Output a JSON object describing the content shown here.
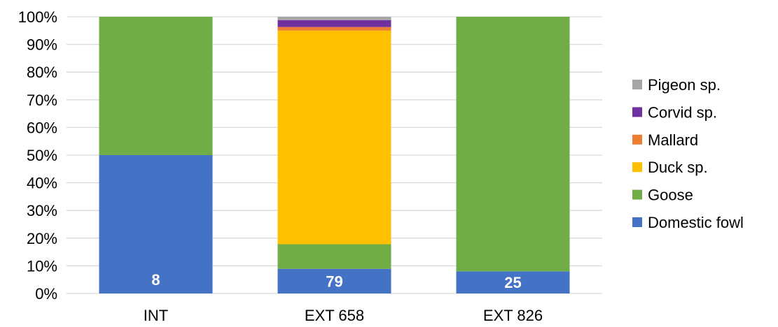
{
  "chart_data": {
    "type": "bar",
    "stacked": "percent",
    "categories": [
      "INT",
      "EXT 658",
      "EXT 826"
    ],
    "series": [
      {
        "name": "Domestic fowl",
        "color": "#4472C4",
        "values": [
          50,
          8.9,
          8
        ]
      },
      {
        "name": "Goose",
        "color": "#70AD47",
        "values": [
          50,
          8.9,
          92
        ]
      },
      {
        "name": "Duck sp.",
        "color": "#FFC000",
        "values": [
          0,
          77.2,
          0
        ]
      },
      {
        "name": "Mallard",
        "color": "#ED7D31",
        "values": [
          0,
          1.3,
          0
        ]
      },
      {
        "name": "Corvid sp.",
        "color": "#7030A0",
        "values": [
          0,
          2.5,
          0
        ]
      },
      {
        "name": "Pigeon sp.",
        "color": "#A5A5A5",
        "values": [
          0,
          1.2,
          0
        ]
      }
    ],
    "data_labels": [
      "8",
      "79",
      "25"
    ],
    "y_ticks": [
      "0%",
      "10%",
      "20%",
      "30%",
      "40%",
      "50%",
      "60%",
      "70%",
      "80%",
      "90%",
      "100%"
    ],
    "ylim": [
      0,
      100
    ],
    "grid": true,
    "legend": "right"
  }
}
